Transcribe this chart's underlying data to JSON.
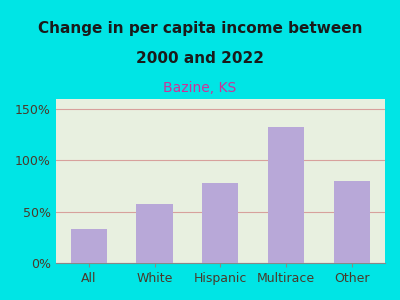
{
  "title_line1": "Change in per capita income between",
  "title_line2": "2000 and 2022",
  "subtitle": "Bazine, KS",
  "categories": [
    "All",
    "White",
    "Hispanic",
    "Multirace",
    "Other"
  ],
  "values": [
    33,
    58,
    78,
    133,
    80
  ],
  "bar_color": "#b8a8d8",
  "background_outer": "#00e5e5",
  "background_plot": "#e8f0e0",
  "title_color": "#1a1a1a",
  "subtitle_color": "#cc3399",
  "axis_label_color": "#4a3a2a",
  "grid_color": "#d08080",
  "ylim": [
    0,
    160
  ],
  "yticks": [
    0,
    50,
    100,
    150
  ],
  "ytick_labels": [
    "0%",
    "50%",
    "100%",
    "150%"
  ]
}
